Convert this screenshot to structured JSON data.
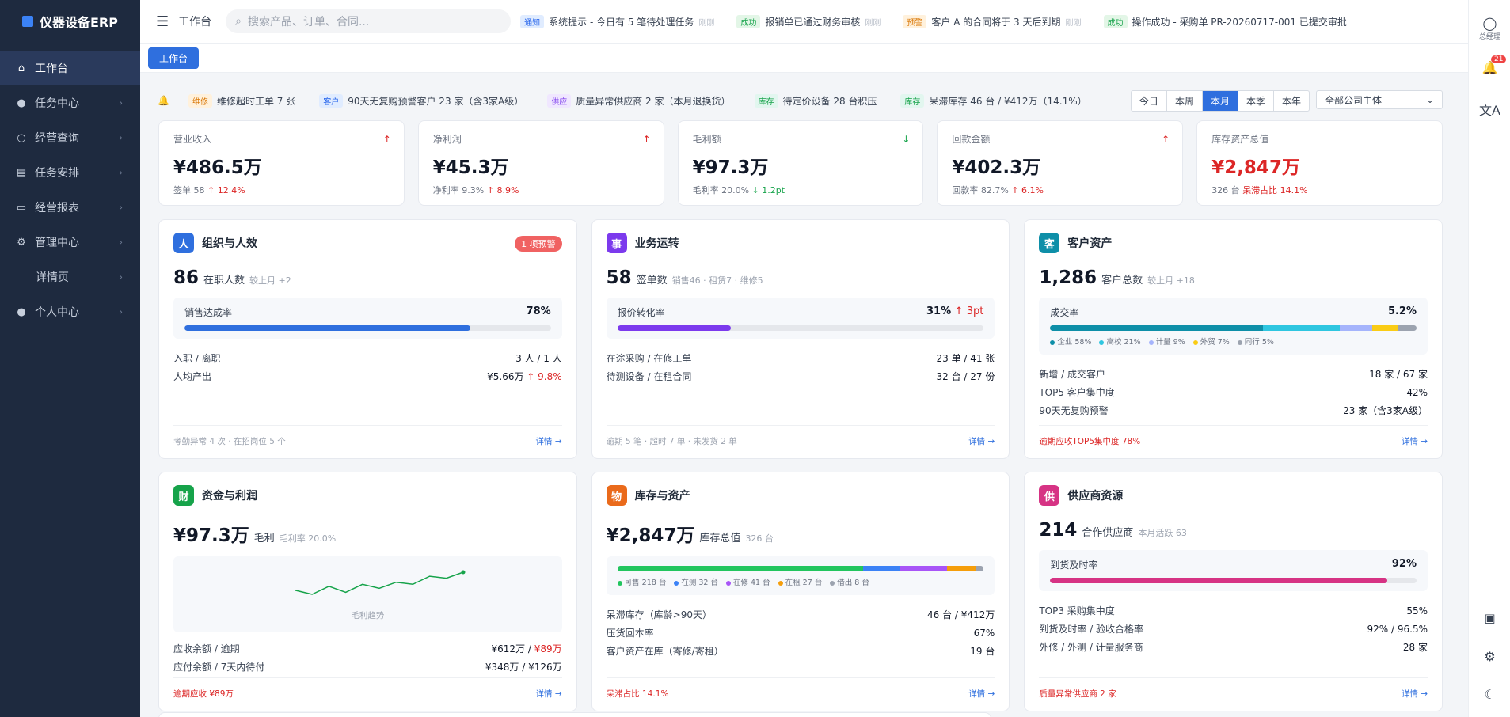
{
  "app": {
    "title": "仪器设备ERP"
  },
  "sidebar": {
    "items": [
      {
        "label": "工作台",
        "icon": "home-icon"
      },
      {
        "label": "任务中心",
        "icon": "user-icon"
      },
      {
        "label": "经营查询",
        "icon": "search-icon"
      },
      {
        "label": "任务安排",
        "icon": "clipboard-icon"
      },
      {
        "label": "经营报表",
        "icon": "chart-icon"
      },
      {
        "label": "管理中心",
        "icon": "gear-icon"
      },
      {
        "label": "详情页",
        "icon": ""
      },
      {
        "label": "个人中心",
        "icon": "user-icon"
      }
    ]
  },
  "topbar": {
    "workspace": "工作台",
    "search_placeholder": "搜索产品、订单、合同...",
    "ticker": [
      {
        "tag": "通知",
        "text": "系统提示 - 今日有 5 笔待处理任务",
        "time": "刚刚"
      },
      {
        "tag": "成功",
        "text": "报销单已通过财务审核",
        "time": "刚刚"
      },
      {
        "tag": "预警",
        "text": "客户 A 的合同将于 3 天后到期",
        "time": "刚刚"
      },
      {
        "tag": "成功",
        "text": "操作成功 - 采购单 PR-20260717-001 已提交审批",
        "time": ""
      }
    ]
  },
  "tabs": {
    "active": "工作台"
  },
  "alerts": [
    {
      "tag": "维修",
      "text": "维修超时工单 7 张"
    },
    {
      "tag": "客户",
      "text": "90天无复购预警客户 23 家（含3家A级）"
    },
    {
      "tag": "供应",
      "text": "质量异常供应商 2 家（本月退换货）"
    },
    {
      "tag": "库存",
      "text": "待定价设备 28 台积压"
    },
    {
      "tag": "库存",
      "text": "呆滞库存 46 台 / ¥412万（14.1%）"
    }
  ],
  "periods": [
    "今日",
    "本周",
    "本月",
    "本季",
    "本年"
  ],
  "period_active": "本月",
  "company_select": "全部公司主体",
  "kpis": [
    {
      "label": "营业收入",
      "value": "¥486.5万",
      "sub1": "签单 58",
      "sub2": "↑ 12.4%",
      "trend": "up"
    },
    {
      "label": "净利润",
      "value": "¥45.3万",
      "sub1": "净利率 9.3%",
      "sub2": "↑ 8.9%",
      "trend": "up"
    },
    {
      "label": "毛利额",
      "value": "¥97.3万",
      "sub1": "毛利率 20.0%",
      "sub2": "↓ 1.2pt",
      "trend": "down"
    },
    {
      "label": "回款金额",
      "value": "¥402.3万",
      "sub1": "回款率 82.7%",
      "sub2": "↑ 6.1%",
      "trend": "up"
    },
    {
      "label": "库存资产总值",
      "value": "¥2,847万",
      "sub1": "326 台",
      "sub2": "呆滞占比 14.1%",
      "trend": ""
    }
  ],
  "cards": {
    "org": {
      "badge": "人",
      "title": "组织与人效",
      "warn": "1 项预警",
      "big": "86",
      "unit": "在职人数",
      "sub": "较上月 +2",
      "bar_label": "销售达成率",
      "bar_value": "78%",
      "bar_pct": 78,
      "rows": [
        [
          "入职 / 离职",
          "3 人 / 1 人"
        ],
        [
          "人均产出",
          "¥5.66万",
          "↑ 9.8%"
        ]
      ],
      "foot_left": "考勤异常 4 次 · 在招岗位 5 个",
      "foot_right": "详情 →"
    },
    "biz": {
      "badge": "事",
      "title": "业务运转",
      "big": "58",
      "unit": "签单数",
      "sub": "销售46 · 租赁7 · 维修5",
      "bar_label": "报价转化率",
      "bar_value": "31%",
      "bar_delta": "↑ 3pt",
      "bar_pct": 31,
      "rows": [
        [
          "在途采购 / 在修工单",
          "23 单 / 41 张"
        ],
        [
          "待测设备 / 在租合同",
          "32 台 / 27 份"
        ]
      ],
      "foot_left": "逾期 5 笔 · 超时 7 单 · 未发货 2 单",
      "foot_right": "详情 →"
    },
    "cust": {
      "badge": "客",
      "title": "客户资产",
      "big": "1,286",
      "unit": "客户总数",
      "sub": "较上月 +18",
      "bar_label": "成交率",
      "bar_value": "5.2%",
      "segments": [
        {
          "name": "企业",
          "pct": 58,
          "color": "#0e8fa8"
        },
        {
          "name": "高校",
          "pct": 21,
          "color": "#2fc6e0"
        },
        {
          "name": "计量",
          "pct": 9,
          "color": "#a5b4fc"
        },
        {
          "name": "外贸",
          "pct": 7,
          "color": "#facc15"
        },
        {
          "name": "同行",
          "pct": 5,
          "color": "#9ca3af"
        }
      ],
      "legend": [
        "企业 58%",
        "高校 21%",
        "计量 9%",
        "外贸 7%",
        "同行 5%"
      ],
      "rows": [
        [
          "新增 / 成交客户",
          "18 家 / 67 家"
        ],
        [
          "TOP5 客户集中度",
          "42%"
        ],
        [
          "90天无复购预警",
          "23 家（含3家A级）"
        ]
      ],
      "foot_left": "逾期应收TOP5集中度 78%",
      "foot_right": "详情 →"
    },
    "fin": {
      "badge": "财",
      "title": "资金与利润",
      "big": "¥97.3万",
      "unit": "毛利",
      "sub": "毛利率 20.0%",
      "spark_caption": "毛利趋势",
      "spark": [
        6,
        4,
        8,
        5,
        9,
        7,
        10,
        9,
        13,
        12,
        15
      ],
      "rows": [
        [
          "应收余额 / 逾期",
          "¥612万 / ",
          "¥89万"
        ],
        [
          "应付余额 / 7天内待付",
          "¥348万 / ¥126万"
        ]
      ],
      "foot_left": "逾期应收 ¥89万",
      "foot_right": "详情 →"
    },
    "inv": {
      "badge": "物",
      "title": "库存与资产",
      "big": "¥2,847万",
      "unit": "库存总值",
      "sub": "326 台",
      "segments": [
        {
          "name": "可售",
          "pct": 67,
          "color": "#22c55e"
        },
        {
          "name": "在测",
          "pct": 10,
          "color": "#3b82f6"
        },
        {
          "name": "在修",
          "pct": 13,
          "color": "#a855f7"
        },
        {
          "name": "在租",
          "pct": 8,
          "color": "#f59e0b"
        },
        {
          "name": "借出",
          "pct": 2,
          "color": "#9ca3af"
        }
      ],
      "legend": [
        "可售 218 台",
        "在测 32 台",
        "在修 41 台",
        "在租 27 台",
        "借出 8 台"
      ],
      "rows": [
        [
          "呆滞库存（库龄>90天）",
          "46 台 / ¥412万"
        ],
        [
          "压货回本率",
          "67%"
        ],
        [
          "客户资产在库（寄修/寄租）",
          "19 台"
        ]
      ],
      "foot_left": "呆滞占比 14.1%",
      "foot_right": "详情 →"
    },
    "sup": {
      "badge": "供",
      "title": "供应商资源",
      "big": "214",
      "unit": "合作供应商",
      "sub": "本月活跃 63",
      "bar_label": "到货及时率",
      "bar_value": "92%",
      "bar_pct": 92,
      "rows": [
        [
          "TOP3 采购集中度",
          "55%"
        ],
        [
          "到货及时率 / 验收合格率",
          "92% / 96.5%"
        ],
        [
          "外修 / 外测 / 计量服务商",
          "28 家"
        ]
      ],
      "foot_left": "质量异常供应商 2 家",
      "foot_right": "详情 →"
    }
  },
  "rightbar": {
    "user_label": "总经理",
    "notif_count": "21"
  },
  "colors": {
    "sidebar": "#1e2a3f",
    "accent": "#2f6fde",
    "danger": "#dc2626",
    "success": "#16a34a"
  }
}
